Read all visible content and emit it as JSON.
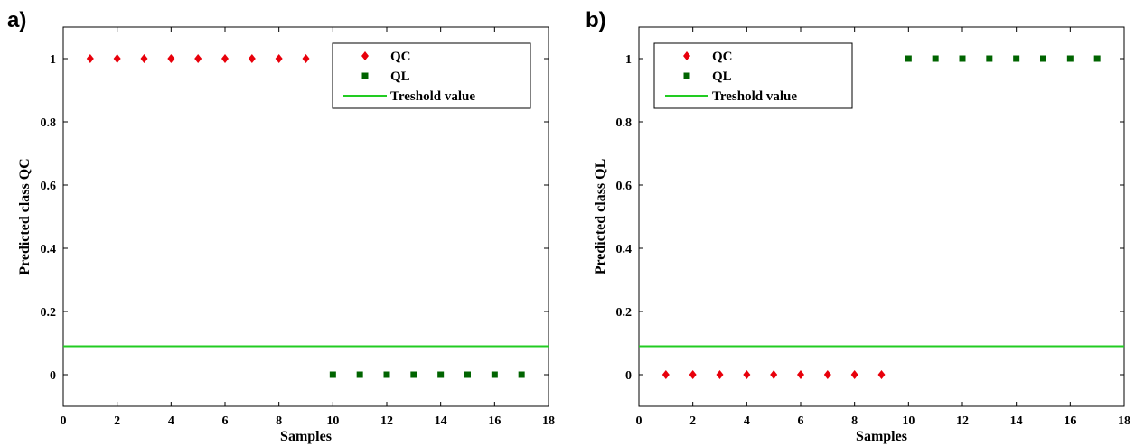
{
  "chart_data": [
    {
      "type": "scatter",
      "panel_label": "a)",
      "xlabel": "Samples",
      "ylabel": "Predicted class QC",
      "xlim": [
        0,
        18
      ],
      "ylim": [
        -0.1,
        1.1
      ],
      "xticks": [
        "0",
        "2",
        "4",
        "6",
        "8",
        "10",
        "12",
        "14",
        "16",
        "18"
      ],
      "yticks": [
        "0",
        "0.2",
        "0.4",
        "0.6",
        "0.8",
        "1"
      ],
      "threshold": 0.09,
      "legend_position": "top-right",
      "series": [
        {
          "name": "QC",
          "marker": "diamond",
          "color": "#e8000b",
          "x": [
            1,
            2,
            3,
            4,
            5,
            6,
            7,
            8,
            9
          ],
          "y": [
            1,
            1,
            1,
            1,
            1,
            1,
            1,
            1,
            1
          ]
        },
        {
          "name": "QL",
          "marker": "square",
          "color": "#006400",
          "x": [
            10,
            11,
            12,
            13,
            14,
            15,
            16,
            17
          ],
          "y": [
            0,
            0,
            0,
            0,
            0,
            0,
            0,
            0
          ]
        }
      ],
      "threshold_series": {
        "name": "Treshold value",
        "color": "#22cc22"
      }
    },
    {
      "type": "scatter",
      "panel_label": "b)",
      "xlabel": "Samples",
      "ylabel": "Predicted class QL",
      "xlim": [
        0,
        18
      ],
      "ylim": [
        -0.1,
        1.1
      ],
      "xticks": [
        "0",
        "2",
        "4",
        "6",
        "8",
        "10",
        "12",
        "14",
        "16",
        "18"
      ],
      "yticks": [
        "0",
        "0.2",
        "0.4",
        "0.6",
        "0.8",
        "1"
      ],
      "threshold": 0.09,
      "legend_position": "top-left",
      "series": [
        {
          "name": "QC",
          "marker": "diamond",
          "color": "#e8000b",
          "x": [
            1,
            2,
            3,
            4,
            5,
            6,
            7,
            8,
            9
          ],
          "y": [
            0,
            0,
            0,
            0,
            0,
            0,
            0,
            0,
            0
          ]
        },
        {
          "name": "QL",
          "marker": "square",
          "color": "#006400",
          "x": [
            10,
            11,
            12,
            13,
            14,
            15,
            16,
            17
          ],
          "y": [
            1,
            1,
            1,
            1,
            1,
            1,
            1,
            1
          ]
        }
      ],
      "threshold_series": {
        "name": "Treshold value",
        "color": "#22cc22"
      }
    }
  ]
}
